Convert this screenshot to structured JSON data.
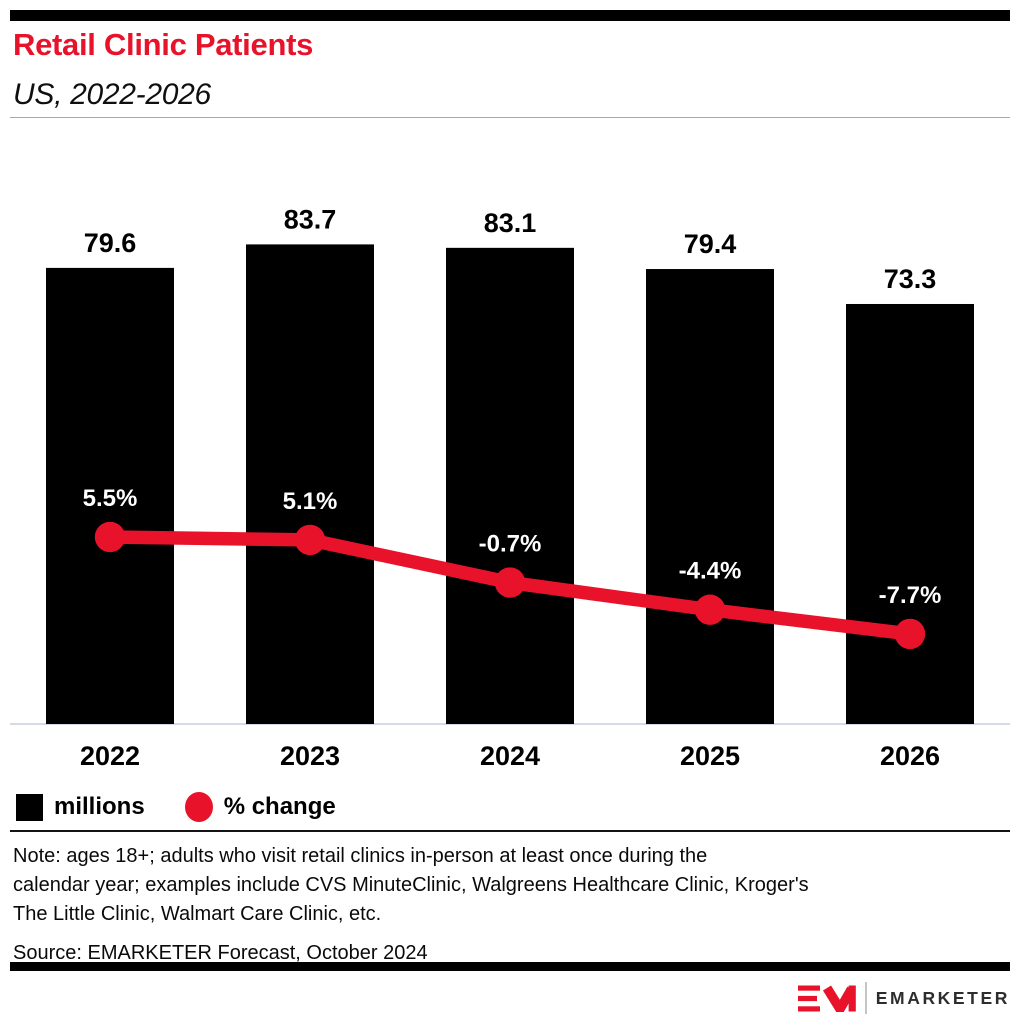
{
  "page": {
    "title": "Retail Clinic Patients",
    "subtitle": "US, 2022-2026",
    "accent_color": "#e8132b"
  },
  "chart_data": {
    "type": "bar",
    "title": "Retail Clinic Patients",
    "subtitle": "US, 2022-2026",
    "categories": [
      "2022",
      "2023",
      "2024",
      "2025",
      "2026"
    ],
    "series": [
      {
        "name": "millions",
        "type": "bar",
        "color": "#000000",
        "values": [
          79.6,
          83.7,
          83.1,
          79.4,
          73.3
        ],
        "labels": [
          "79.6",
          "83.7",
          "83.1",
          "79.4",
          "73.3"
        ]
      },
      {
        "name": "% change",
        "type": "line",
        "color": "#e8132b",
        "values": [
          5.5,
          5.1,
          -0.7,
          -4.4,
          -7.7
        ],
        "labels": [
          "5.5%",
          "5.1%",
          "-0.7%",
          "-4.4%",
          "-7.7%"
        ]
      }
    ],
    "legend_position": "bottom-left",
    "gridlines": false,
    "baseline_color": "#d6dae6"
  },
  "legend": {
    "millions_label": "millions",
    "pct_label": "% change"
  },
  "footer": {
    "note_lines": [
      "Note: ages 18+; adults who visit retail clinics in-person at least once during the",
      "calendar year; examples include CVS MinuteClinic, Walgreens Healthcare Clinic, Kroger's",
      "The Little Clinic, Walmart Care Clinic, etc."
    ],
    "source": "Source: EMARKETER Forecast, October 2024",
    "brand": "EMARKETER"
  }
}
